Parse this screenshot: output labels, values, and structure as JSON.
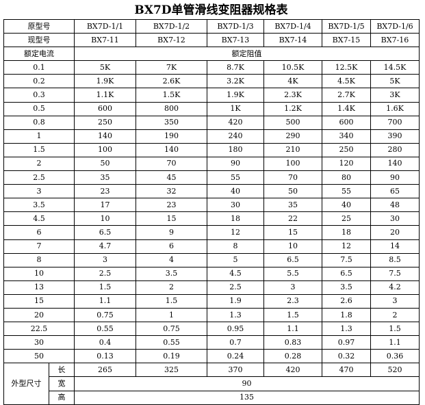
{
  "title": "BX7D单管滑线变阻器规格表",
  "header": {
    "original_label": "原型号",
    "original_models": [
      "BX7D-1/1",
      "BX7D-1/2",
      "BX7D-1/3",
      "BX7D-1/4",
      "BX7D-1/5",
      "BX7D-1/6"
    ],
    "current_label": "现型号",
    "current_models": [
      "BX7-11",
      "BX7-12",
      "BX7-13",
      "BX7-14",
      "BX7-15",
      "BX7-16"
    ],
    "rated_current_label": "额定电流",
    "rated_resistance_label": "额定阻值"
  },
  "rows": [
    {
      "current": "0.1",
      "values": [
        "5K",
        "7K",
        "8.7K",
        "10.5K",
        "12.5K",
        "14.5K"
      ]
    },
    {
      "current": "0.2",
      "values": [
        "1.9K",
        "2.6K",
        "3.2K",
        "4K",
        "4.5K",
        "5K"
      ]
    },
    {
      "current": "0.3",
      "values": [
        "1.1K",
        "1.5K",
        "1.9K",
        "2.3K",
        "2.7K",
        "3K"
      ]
    },
    {
      "current": "0.5",
      "values": [
        "600",
        "800",
        "1K",
        "1.2K",
        "1.4K",
        "1.6K"
      ]
    },
    {
      "current": "0.8",
      "values": [
        "250",
        "350",
        "420",
        "500",
        "600",
        "700"
      ]
    },
    {
      "current": "1",
      "values": [
        "140",
        "190",
        "240",
        "290",
        "340",
        "390"
      ]
    },
    {
      "current": "1.5",
      "values": [
        "100",
        "140",
        "180",
        "210",
        "250",
        "280"
      ]
    },
    {
      "current": "2",
      "values": [
        "50",
        "70",
        "90",
        "100",
        "120",
        "140"
      ]
    },
    {
      "current": "2.5",
      "values": [
        "35",
        "45",
        "55",
        "70",
        "80",
        "90"
      ]
    },
    {
      "current": "3",
      "values": [
        "23",
        "32",
        "40",
        "50",
        "55",
        "65"
      ]
    },
    {
      "current": "3.5",
      "values": [
        "17",
        "23",
        "30",
        "35",
        "40",
        "48"
      ]
    },
    {
      "current": "4.5",
      "values": [
        "10",
        "15",
        "18",
        "22",
        "25",
        "30"
      ]
    },
    {
      "current": "6",
      "values": [
        "6.5",
        "9",
        "12",
        "15",
        "18",
        "20"
      ]
    },
    {
      "current": "7",
      "values": [
        "4.7",
        "6",
        "8",
        "10",
        "12",
        "14"
      ]
    },
    {
      "current": "8",
      "values": [
        "3",
        "4",
        "5",
        "6.5",
        "7.5",
        "8.5"
      ]
    },
    {
      "current": "10",
      "values": [
        "2.5",
        "3.5",
        "4.5",
        "5.5",
        "6.5",
        "7.5"
      ]
    },
    {
      "current": "13",
      "values": [
        "1.5",
        "2",
        "2.5",
        "3",
        "3.5",
        "4.2"
      ]
    },
    {
      "current": "15",
      "values": [
        "1.1",
        "1.5",
        "1.9",
        "2.3",
        "2.6",
        "3"
      ]
    },
    {
      "current": "20",
      "values": [
        "0.75",
        "1",
        "1.3",
        "1.5",
        "1.8",
        "2"
      ]
    },
    {
      "current": "22.5",
      "values": [
        "0.55",
        "0.75",
        "0.95",
        "1.1",
        "1.3",
        "1.5"
      ]
    },
    {
      "current": "30",
      "values": [
        "0.4",
        "0.55",
        "0.7",
        "0.83",
        "0.97",
        "1.1"
      ]
    },
    {
      "current": "50",
      "values": [
        "0.13",
        "0.19",
        "0.24",
        "0.28",
        "0.32",
        "0.36"
      ]
    }
  ],
  "dimensions": {
    "label": "外型尺寸",
    "length_label": "长",
    "length": [
      "265",
      "325",
      "370",
      "420",
      "470",
      "520"
    ],
    "width_label": "宽",
    "width": "90",
    "height_label": "高",
    "height": "135"
  }
}
